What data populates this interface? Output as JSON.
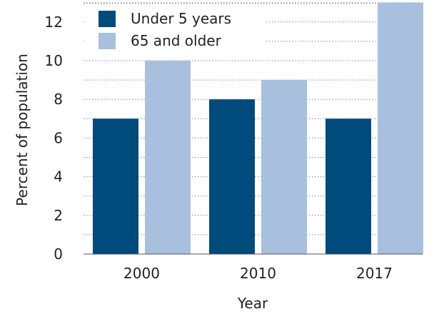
{
  "chart_data": {
    "type": "bar",
    "categories": [
      "2000",
      "2010",
      "2017"
    ],
    "series": [
      {
        "name": "Under 5 years",
        "values": [
          7,
          8,
          7
        ],
        "color": "#004a7c"
      },
      {
        "name": "65 and older",
        "values": [
          10,
          9,
          13
        ],
        "color": "#a9bfde"
      }
    ],
    "xlabel": "Year",
    "ylabel": "Percent of population",
    "ylim": [
      0,
      13
    ],
    "yticks": [
      0,
      2,
      4,
      6,
      8,
      10,
      12
    ],
    "grid": true,
    "legend": "top-left"
  }
}
